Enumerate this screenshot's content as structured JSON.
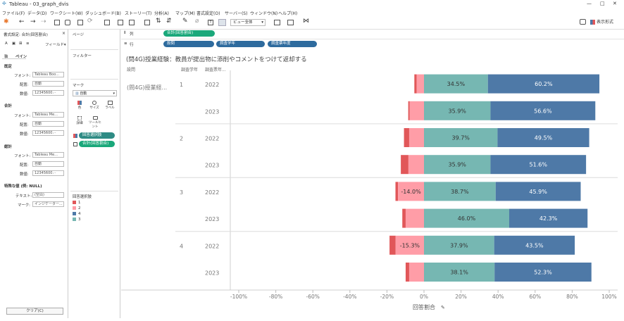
{
  "window": {
    "title": "Tableau - 03_graph_dvis",
    "minimize": "—",
    "maximize": "□",
    "close": "✕"
  },
  "menu": [
    "ファイル(F)",
    "データ(D)",
    "ワークシート(W)",
    "ダッシュボード(B)",
    "ストーリー(T)",
    "分析(A)",
    "マップ(M)",
    "書式設定(O)",
    "サーバー(S)",
    "ウィンドウ(N)",
    "ヘルプ(H)"
  ],
  "toolbar": {
    "fit_select": "ビュー全体",
    "show_me": "表示形式"
  },
  "format_pane": {
    "header": "書式設定: 合計(回答割合)",
    "close": "×",
    "field_label": "フィールド▾",
    "tabs": [
      "軸",
      "ペイン"
    ],
    "sections": [
      {
        "title": "既定",
        "rows": [
          {
            "label": "フォント:",
            "value": "Tableau Boo..."
          },
          {
            "label": "配置:",
            "value": "自動"
          },
          {
            "label": "数値:",
            "value": "12345600.··"
          }
        ]
      },
      {
        "title": "合計",
        "rows": [
          {
            "label": "フォント:",
            "value": "Tableau Me..."
          },
          {
            "label": "配置:",
            "value": "自動"
          },
          {
            "label": "数値:",
            "value": "12345600.··"
          }
        ]
      },
      {
        "title": "総計",
        "rows": [
          {
            "label": "フォント:",
            "value": "Tableau Me..."
          },
          {
            "label": "配置:",
            "value": "自動"
          },
          {
            "label": "数値:",
            "value": "12345600.··"
          }
        ]
      }
    ],
    "special_title": "特殊な値 (例: NULL)",
    "text_label": "テキスト:",
    "text_placeholder": "(空白)",
    "mark_label": "マーク:",
    "mark_value": "インジケーター...",
    "clear_button": "クリア(C)"
  },
  "cards": {
    "pages": "ページ",
    "filters": "フィルター",
    "marks": "マーク",
    "mark_type": "自動",
    "mark_buttons": [
      "色",
      "サイズ",
      "ラベル",
      "詳細",
      "ツールヒント"
    ],
    "mark_pills": [
      "回答選択肢",
      "合計(回答割合)"
    ],
    "legend_title": "回答選択肢",
    "legend_items": [
      {
        "label": "1",
        "color": "#e15759"
      },
      {
        "label": "2",
        "color": "#ff9da7"
      },
      {
        "label": "4",
        "color": "#4e79a7"
      },
      {
        "label": "3",
        "color": "#76b7b2"
      }
    ]
  },
  "shelves": {
    "columns_label": "列",
    "rows_label": "行",
    "column_pills": [
      "合計(回答割合)"
    ],
    "row_pills": [
      "設問",
      "調査学年",
      "調査票年度"
    ]
  },
  "viz": {
    "title": "(問4G)授業経験：教員が提出物に添削やコメントをつけて返却する",
    "headers": [
      "設問",
      "調査学年",
      "調査票年..."
    ],
    "question": "(問4G)授業経...",
    "x_axis_title": "回答割合",
    "x_ticks": [
      "-100%",
      "-80%",
      "-60%",
      "-40%",
      "-20%",
      "0%",
      "20%",
      "40%",
      "60%",
      "80%",
      "100%"
    ]
  },
  "chart_data": {
    "type": "bar",
    "orientation": "horizontal-diverging-stacked",
    "title": "(問4G)授業経験：教員が提出物に添削やコメントをつけて返却する",
    "xlabel": "回答割合",
    "xlim": [
      -100,
      100
    ],
    "series_colors": {
      "1": "#e15759",
      "2": "#ff9da7",
      "3": "#76b7b2",
      "4": "#4e79a7"
    },
    "rows": [
      {
        "grade": "1",
        "year": "2022",
        "s1": -1.2,
        "s2": -4.0,
        "s3": 34.5,
        "s4": 60.2,
        "labels": {
          "s3": "34.5%",
          "s4": "60.2%"
        }
      },
      {
        "grade": "",
        "year": "2023",
        "s1": -0.8,
        "s2": -7.7,
        "s3": 35.9,
        "s4": 56.6,
        "labels": {
          "s3": "35.9%",
          "s4": "56.6%"
        }
      },
      {
        "grade": "2",
        "year": "2022",
        "s1": -2.8,
        "s2": -8.0,
        "s3": 39.7,
        "s4": 49.5,
        "labels": {
          "s3": "39.7%",
          "s4": "49.5%"
        }
      },
      {
        "grade": "",
        "year": "2023",
        "s1": -4.1,
        "s2": -8.4,
        "s3": 35.9,
        "s4": 51.6,
        "labels": {
          "s3": "35.9%",
          "s4": "51.6%"
        }
      },
      {
        "grade": "3",
        "year": "2022",
        "s1": -1.4,
        "s2": -14.0,
        "s3": 38.7,
        "s4": 45.9,
        "labels": {
          "s2": "-14.0%",
          "s3": "38.7%",
          "s4": "45.9%"
        }
      },
      {
        "grade": "",
        "year": "2023",
        "s1": -1.8,
        "s2": -9.9,
        "s3": 46.0,
        "s4": 42.3,
        "labels": {
          "s3": "46.0%",
          "s4": "42.3%"
        }
      },
      {
        "grade": "4",
        "year": "2022",
        "s1": -3.3,
        "s2": -15.3,
        "s3": 37.9,
        "s4": 43.5,
        "labels": {
          "s2": "-15.3%",
          "s3": "37.9%",
          "s4": "43.5%"
        }
      },
      {
        "grade": "",
        "year": "2023",
        "s1": -1.9,
        "s2": -8.0,
        "s3": 38.1,
        "s4": 52.3,
        "labels": {
          "s3": "38.1%",
          "s4": "52.3%"
        }
      }
    ]
  }
}
